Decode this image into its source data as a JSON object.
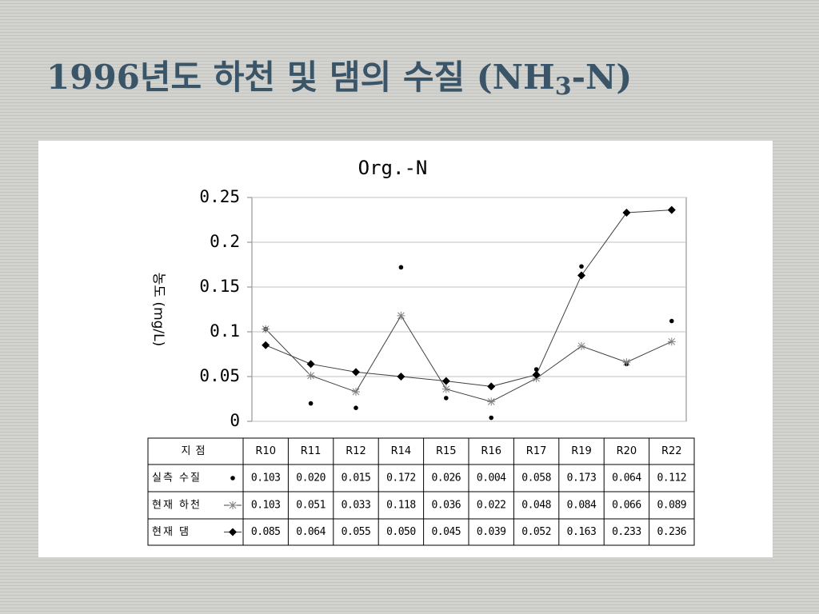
{
  "slide_title": {
    "main": "1996년도 하천 및 댐의 수질 (NH",
    "sub": "3",
    "end": "-N)"
  },
  "chart_data": {
    "type": "line",
    "title": "Org.-N",
    "y_label": "농도 (mg/L)",
    "categories": [
      "R10",
      "R11",
      "R12",
      "R14",
      "R15",
      "R16",
      "R17",
      "R19",
      "R20",
      "R22"
    ],
    "table_header": "지점",
    "series": [
      {
        "name": "실측 수질",
        "color": "#000000",
        "marker": "dot",
        "line": false,
        "values": [
          0.103,
          0.02,
          0.015,
          0.172,
          0.026,
          0.004,
          0.058,
          0.173,
          0.064,
          0.112
        ],
        "value_labels": [
          "0.103",
          "0.020",
          "0.015",
          "0.172",
          "0.026",
          "0.004",
          "0.058",
          "0.173",
          "0.064",
          "0.112"
        ]
      },
      {
        "name": "현재 하천",
        "color": "#808080",
        "marker": "star",
        "line": true,
        "values": [
          0.103,
          0.051,
          0.033,
          0.118,
          0.036,
          0.022,
          0.048,
          0.084,
          0.066,
          0.089
        ],
        "value_labels": [
          "0.103",
          "0.051",
          "0.033",
          "0.118",
          "0.036",
          "0.022",
          "0.048",
          "0.084",
          "0.066",
          "0.089"
        ]
      },
      {
        "name": "현재 댐",
        "color": "#000000",
        "marker": "diamond",
        "line": true,
        "values": [
          0.085,
          0.064,
          0.055,
          0.05,
          0.045,
          0.039,
          0.052,
          0.163,
          0.233,
          0.236
        ],
        "value_labels": [
          "0.085",
          "0.064",
          "0.055",
          "0.050",
          "0.045",
          "0.039",
          "0.052",
          "0.163",
          "0.233",
          "0.236"
        ]
      }
    ],
    "ylim": [
      0,
      0.25
    ],
    "yticks": [
      0,
      0.05,
      0.1,
      0.15,
      0.2,
      0.25
    ],
    "grid": true
  }
}
